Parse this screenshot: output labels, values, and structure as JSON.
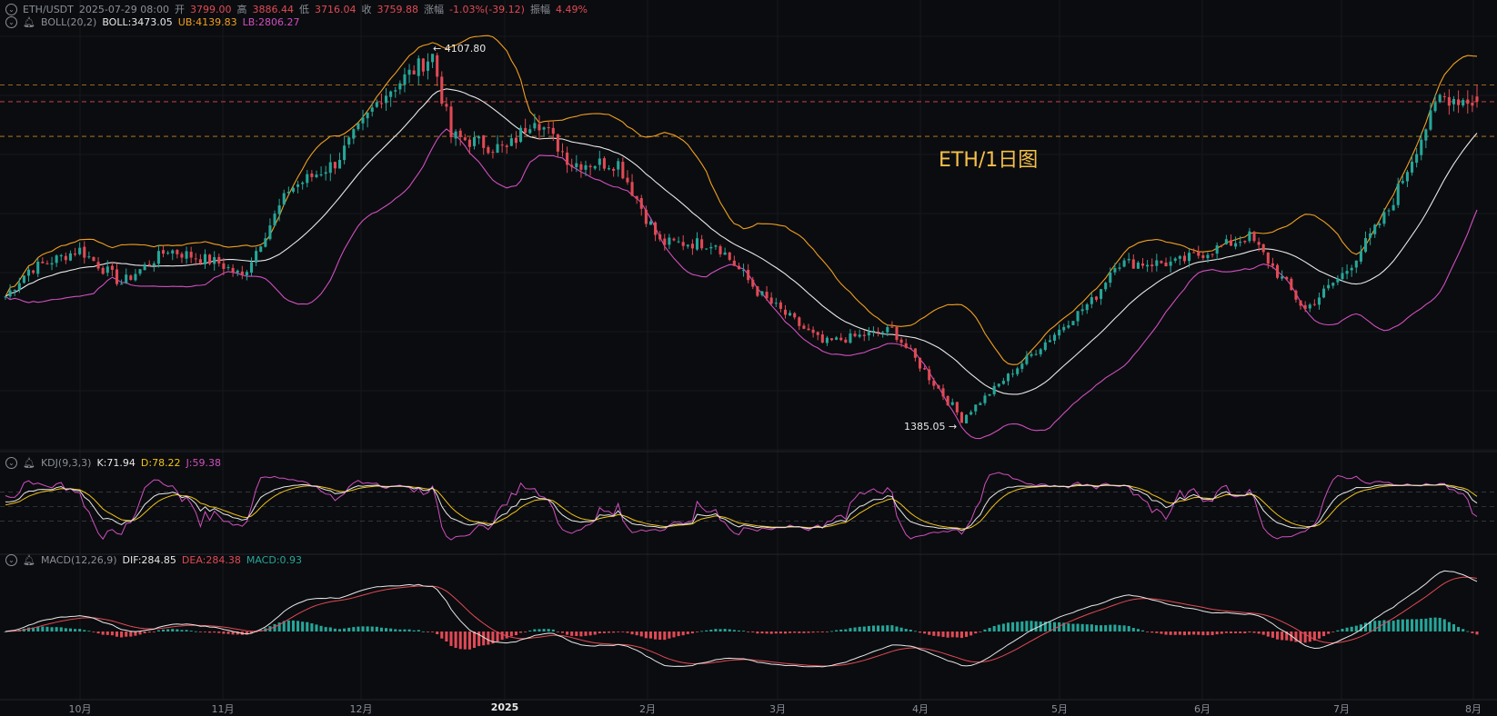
{
  "header": {
    "symbol": "ETH/USDT",
    "datetime": "2025-07-29 08:00",
    "open_label": "开",
    "open": "3799.00",
    "high_label": "高",
    "high": "3886.44",
    "low_label": "低",
    "low": "3716.04",
    "close_label": "收",
    "close": "3759.88",
    "change_label": "涨幅",
    "change": "-1.03%(-39.12)",
    "amp_label": "振幅",
    "amp": "4.49%"
  },
  "boll": {
    "name": "BOLL(20,2)",
    "mid": "BOLL:3473.05",
    "ub": "UB:4139.83",
    "lb": "LB:2806.27"
  },
  "kdj": {
    "name": "KDJ(9,3,3)",
    "k": "K:71.94",
    "d": "D:78.22",
    "j": "J:59.38"
  },
  "macd": {
    "name": "MACD(12,26,9)",
    "dif": "DIF:284.85",
    "dea": "DEA:284.38",
    "macd": "MACD:0.93"
  },
  "watermark": "ETH/1日图",
  "annotations": {
    "high_label": "4107.80",
    "low_label": "1385.05"
  },
  "colors": {
    "up": "#26a69a",
    "down": "#e04a55",
    "boll_mid": "#e8e8e8",
    "boll_ub": "#f0a020",
    "boll_lb": "#d04fc0",
    "k": "#e8e8e8",
    "d": "#f0c419",
    "j": "#d04fc0",
    "dif": "#e8e8e8",
    "dea": "#e04a55"
  },
  "chart_data": {
    "type": "candlestick",
    "x_ticks": [
      "10月",
      "11月",
      "12月",
      "2025",
      "2月",
      "3月",
      "4月",
      "5月",
      "6月",
      "7月",
      "8月"
    ],
    "price_anchors": [
      [
        "2024-09-15",
        2300
      ],
      [
        "2024-09-20",
        2500
      ],
      [
        "2024-10-01",
        2650
      ],
      [
        "2024-10-10",
        2400
      ],
      [
        "2024-10-20",
        2650
      ],
      [
        "2024-10-31",
        2550
      ],
      [
        "2024-11-05",
        2450
      ],
      [
        "2024-11-15",
        3100
      ],
      [
        "2024-11-25",
        3300
      ],
      [
        "2024-12-05",
        3800
      ],
      [
        "2024-12-16",
        4107.8
      ],
      [
        "2024-12-20",
        3500
      ],
      [
        "2025-01-01",
        3400
      ],
      [
        "2025-01-07",
        3650
      ],
      [
        "2025-01-15",
        3300
      ],
      [
        "2025-01-25",
        3300
      ],
      [
        "2025-02-03",
        2700
      ],
      [
        "2025-02-15",
        2700
      ],
      [
        "2025-02-25",
        2300
      ],
      [
        "2025-03-10",
        1950
      ],
      [
        "2025-03-25",
        2050
      ],
      [
        "2025-04-09",
        1385.05
      ],
      [
        "2025-04-22",
        1800
      ],
      [
        "2025-05-08",
        2300
      ],
      [
        "2025-05-12",
        2550
      ],
      [
        "2025-05-25",
        2550
      ],
      [
        "2025-06-10",
        2750
      ],
      [
        "2025-06-22",
        2200
      ],
      [
        "2025-07-01",
        2500
      ],
      [
        "2025-07-10",
        2950
      ],
      [
        "2025-07-21",
        3800
      ],
      [
        "2025-07-29",
        3759.88
      ]
    ],
    "price_axis": {
      "min": 1150,
      "max": 4250
    },
    "reference_lines": [
      3886.44,
      3759.88,
      3500
    ]
  }
}
